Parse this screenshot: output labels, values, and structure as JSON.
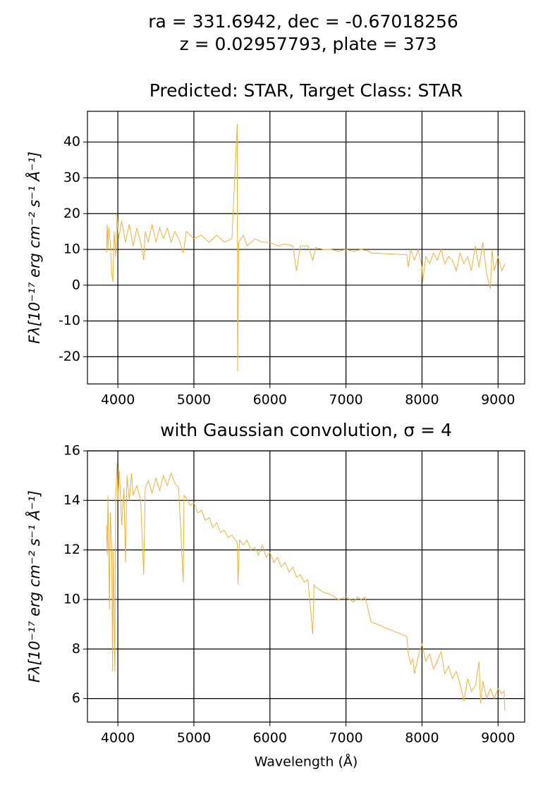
{
  "figure": {
    "title_lines": [
      "ra = 331.6942, dec = -0.67018256",
      "z = 0.02957793, plate = 373"
    ]
  },
  "chart_data": [
    {
      "type": "line",
      "title": "Predicted: STAR, Target Class: STAR",
      "y_label": "Fλ[10⁻¹⁷ erg cm⁻² s⁻¹ Å⁻¹]",
      "xlim": [
        3600,
        9350
      ],
      "ylim": [
        -27.6,
        48.6
      ],
      "xticks": [
        4000,
        5000,
        6000,
        7000,
        8000,
        9000
      ],
      "yticks": [
        -20,
        -10,
        0,
        10,
        20,
        30,
        40
      ],
      "grid": true,
      "color": "#f2b035",
      "x": [
        3850,
        3860,
        3870,
        3880,
        3900,
        3920,
        3935,
        3950,
        3970,
        3990,
        4010,
        4050,
        4100,
        4150,
        4200,
        4250,
        4300,
        4340,
        4360,
        4400,
        4450,
        4500,
        4550,
        4600,
        4650,
        4700,
        4750,
        4800,
        4860,
        4900,
        5000,
        5100,
        5200,
        5300,
        5400,
        5500,
        5570,
        5575,
        5590,
        5650,
        5700,
        5800,
        5900,
        6000,
        6100,
        6200,
        6300,
        6350,
        6400,
        6500,
        6563,
        6600,
        6700,
        6800,
        6900,
        7000,
        7100,
        7200,
        7300,
        7330,
        7800,
        7820,
        7850,
        7900,
        7950,
        8000,
        8010,
        8050,
        8100,
        8150,
        8200,
        8250,
        8300,
        8350,
        8400,
        8450,
        8500,
        8550,
        8600,
        8650,
        8700,
        8750,
        8800,
        8850,
        8900,
        8920,
        8950,
        9000,
        9050,
        9090
      ],
      "values": [
        9,
        17,
        10,
        16,
        12,
        3,
        1,
        15,
        8,
        20,
        13,
        18,
        12,
        17,
        11,
        16,
        12,
        7,
        15,
        12,
        17,
        12,
        16,
        13,
        16,
        12,
        15,
        13,
        9,
        15,
        13,
        14,
        12,
        14,
        12,
        13,
        45,
        -24,
        12,
        14,
        11,
        13,
        12,
        12,
        11,
        11.5,
        11,
        4,
        11,
        11,
        7,
        10.5,
        10,
        10,
        9.5,
        10,
        9.5,
        10,
        9.5,
        9,
        8.5,
        5,
        10,
        7,
        10,
        5,
        1,
        8,
        6,
        9,
        7,
        10,
        6,
        8,
        7,
        4,
        9,
        6,
        8,
        4,
        11,
        5,
        12,
        3,
        -1,
        10,
        4,
        8,
        4,
        6
      ]
    },
    {
      "type": "line",
      "title": "with Gaussian convolution, σ = 4",
      "y_label": "Fλ[10⁻¹⁷ erg cm⁻² s⁻¹ Å⁻¹]",
      "x_label": "Wavelength (Å)",
      "xlim": [
        3600,
        9350
      ],
      "ylim": [
        5.05,
        16
      ],
      "xticks": [
        4000,
        5000,
        6000,
        7000,
        8000,
        9000
      ],
      "yticks": [
        6,
        8,
        10,
        12,
        14,
        16
      ],
      "grid": true,
      "color": "#f2b035",
      "x": [
        3850,
        3860,
        3870,
        3880,
        3890,
        3900,
        3920,
        3930,
        3940,
        3960,
        3970,
        3990,
        4000,
        4020,
        4050,
        4080,
        4100,
        4120,
        4150,
        4180,
        4200,
        4250,
        4300,
        4340,
        4360,
        4400,
        4450,
        4500,
        4550,
        4600,
        4650,
        4700,
        4750,
        4800,
        4860,
        4870,
        4900,
        4950,
        5000,
        5050,
        5100,
        5150,
        5200,
        5250,
        5300,
        5350,
        5400,
        5450,
        5500,
        5570,
        5580,
        5600,
        5650,
        5700,
        5750,
        5800,
        5850,
        5900,
        5950,
        6000,
        6050,
        6100,
        6150,
        6200,
        6250,
        6300,
        6350,
        6400,
        6450,
        6500,
        6563,
        6580,
        6600,
        6700,
        6800,
        6900,
        7000,
        7100,
        7150,
        7200,
        7250,
        7300,
        7330,
        7800,
        7820,
        7850,
        7880,
        7900,
        7950,
        8000,
        8050,
        8100,
        8150,
        8200,
        8250,
        8300,
        8350,
        8400,
        8450,
        8500,
        8550,
        8600,
        8650,
        8700,
        8750,
        8770,
        8800,
        8850,
        8900,
        8950,
        9000,
        9050,
        9080,
        9090
      ],
      "values": [
        13,
        11.8,
        14.2,
        12,
        9.6,
        13.5,
        12,
        7.1,
        12,
        7.1,
        14,
        15.5,
        14,
        15.2,
        13,
        14.5,
        11.5,
        15,
        14,
        15.1,
        14.2,
        14.6,
        14,
        11,
        14.5,
        14.8,
        14.3,
        14.9,
        14.4,
        15,
        14.6,
        15.1,
        14.7,
        14.5,
        10.7,
        14.2,
        14.1,
        13.8,
        13.9,
        13.5,
        13.6,
        13.2,
        13.3,
        12.9,
        13.1,
        12.7,
        12.8,
        12.5,
        12.6,
        12.3,
        10.6,
        12.4,
        12.2,
        12.4,
        12,
        12.1,
        11.8,
        12.2,
        11.7,
        11.9,
        11.5,
        11.7,
        11.3,
        11.5,
        11.1,
        11.3,
        10.9,
        11,
        10.7,
        10.8,
        8.6,
        10.6,
        10.5,
        10.3,
        10.2,
        10,
        10.1,
        9.9,
        10.1,
        10,
        10.1,
        9.5,
        9.1,
        8.5,
        7.8,
        7.4,
        7.6,
        7,
        7.7,
        8.2,
        7.5,
        7.8,
        7.2,
        7.5,
        7.9,
        7,
        7.3,
        6.8,
        7.1,
        6.6,
        5.9,
        6.8,
        6.3,
        6.5,
        7.5,
        5.8,
        6.7,
        6,
        6.4,
        6,
        6.4,
        6.2,
        6.3,
        5.5
      ]
    }
  ]
}
